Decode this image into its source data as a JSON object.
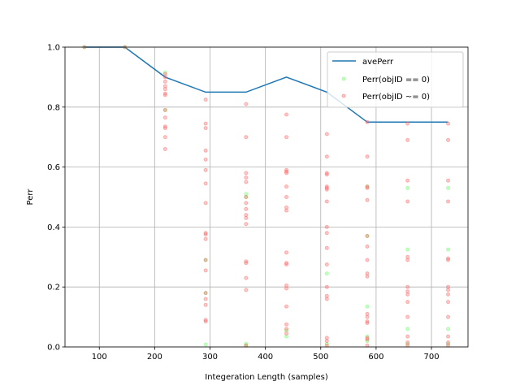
{
  "chart_data": {
    "type": "line",
    "title": "",
    "xlabel": "Integeration Length (samples)",
    "ylabel": "Perr",
    "xlim": [
      38,
      766
    ],
    "ylim": [
      0,
      1
    ],
    "xticks": [
      100,
      200,
      300,
      400,
      500,
      600,
      700
    ],
    "yticks": [
      0.0,
      0.2,
      0.4,
      0.6,
      0.8,
      1.0
    ],
    "grid": true,
    "legend_position": "top-right",
    "series": [
      {
        "name": "avePerr",
        "kind": "line",
        "color": "#1f77b4",
        "x": [
          73,
          146,
          219,
          292,
          365,
          438,
          511,
          584,
          657,
          730
        ],
        "y": [
          1.0,
          1.0,
          0.9,
          0.85,
          0.85,
          0.9,
          0.85,
          0.75,
          0.75,
          0.75
        ]
      },
      {
        "name": "Perr(objID == 0)",
        "kind": "scatter",
        "color": "#66ff66",
        "points": [
          [
            73,
            1.0
          ],
          [
            146,
            1.0
          ],
          [
            219,
            0.915
          ],
          [
            219,
            0.79
          ],
          [
            292,
            0.29
          ],
          [
            292,
            0.18
          ],
          [
            292,
            0.008
          ],
          [
            365,
            0.51
          ],
          [
            365,
            0.5
          ],
          [
            365,
            0.01
          ],
          [
            365,
            0.005
          ],
          [
            438,
            0.055
          ],
          [
            438,
            0.035
          ],
          [
            511,
            0.245
          ],
          [
            511,
            0.01
          ],
          [
            584,
            0.535
          ],
          [
            584,
            0.37
          ],
          [
            584,
            0.135
          ],
          [
            584,
            0.035
          ],
          [
            584,
            0.02
          ],
          [
            657,
            0.53
          ],
          [
            657,
            0.325
          ],
          [
            657,
            0.06
          ],
          [
            657,
            0.01
          ],
          [
            730,
            0.53
          ],
          [
            730,
            0.325
          ],
          [
            730,
            0.06
          ],
          [
            730,
            0.01
          ]
        ]
      },
      {
        "name": "Perr(objID ~= 0)",
        "kind": "scatter",
        "color": "#ff6666",
        "points": [
          [
            73,
            1.0
          ],
          [
            146,
            1.0
          ],
          [
            219,
            0.91
          ],
          [
            219,
            0.9
          ],
          [
            219,
            0.885
          ],
          [
            219,
            0.87
          ],
          [
            219,
            0.86
          ],
          [
            219,
            0.845
          ],
          [
            219,
            0.84
          ],
          [
            219,
            0.79
          ],
          [
            219,
            0.765
          ],
          [
            219,
            0.735
          ],
          [
            219,
            0.73
          ],
          [
            219,
            0.7
          ],
          [
            219,
            0.66
          ],
          [
            292,
            0.825
          ],
          [
            292,
            0.745
          ],
          [
            292,
            0.73
          ],
          [
            292,
            0.655
          ],
          [
            292,
            0.625
          ],
          [
            292,
            0.59
          ],
          [
            292,
            0.545
          ],
          [
            292,
            0.48
          ],
          [
            292,
            0.38
          ],
          [
            292,
            0.375
          ],
          [
            292,
            0.36
          ],
          [
            292,
            0.29
          ],
          [
            292,
            0.255
          ],
          [
            292,
            0.18
          ],
          [
            292,
            0.16
          ],
          [
            292,
            0.14
          ],
          [
            292,
            0.09
          ],
          [
            292,
            0.085
          ],
          [
            365,
            0.81
          ],
          [
            365,
            0.7
          ],
          [
            365,
            0.58
          ],
          [
            365,
            0.565
          ],
          [
            365,
            0.55
          ],
          [
            365,
            0.5
          ],
          [
            365,
            0.48
          ],
          [
            365,
            0.46
          ],
          [
            365,
            0.44
          ],
          [
            365,
            0.43
          ],
          [
            365,
            0.41
          ],
          [
            365,
            0.285
          ],
          [
            365,
            0.28
          ],
          [
            365,
            0.23
          ],
          [
            365,
            0.19
          ],
          [
            365,
            0.005
          ],
          [
            438,
            0.775
          ],
          [
            438,
            0.7
          ],
          [
            438,
            0.59
          ],
          [
            438,
            0.585
          ],
          [
            438,
            0.58
          ],
          [
            438,
            0.535
          ],
          [
            438,
            0.5
          ],
          [
            438,
            0.465
          ],
          [
            438,
            0.455
          ],
          [
            438,
            0.315
          ],
          [
            438,
            0.28
          ],
          [
            438,
            0.275
          ],
          [
            438,
            0.205
          ],
          [
            438,
            0.195
          ],
          [
            438,
            0.135
          ],
          [
            438,
            0.075
          ],
          [
            438,
            0.06
          ],
          [
            438,
            0.045
          ],
          [
            511,
            0.71
          ],
          [
            511,
            0.635
          ],
          [
            511,
            0.58
          ],
          [
            511,
            0.575
          ],
          [
            511,
            0.535
          ],
          [
            511,
            0.53
          ],
          [
            511,
            0.525
          ],
          [
            511,
            0.485
          ],
          [
            511,
            0.4
          ],
          [
            511,
            0.38
          ],
          [
            511,
            0.33
          ],
          [
            511,
            0.275
          ],
          [
            511,
            0.2
          ],
          [
            511,
            0.17
          ],
          [
            511,
            0.16
          ],
          [
            511,
            0.03
          ],
          [
            511,
            0.02
          ],
          [
            511,
            0.005
          ],
          [
            584,
            0.75
          ],
          [
            584,
            0.635
          ],
          [
            584,
            0.535
          ],
          [
            584,
            0.53
          ],
          [
            584,
            0.49
          ],
          [
            584,
            0.37
          ],
          [
            584,
            0.335
          ],
          [
            584,
            0.29
          ],
          [
            584,
            0.245
          ],
          [
            584,
            0.235
          ],
          [
            584,
            0.11
          ],
          [
            584,
            0.1
          ],
          [
            584,
            0.085
          ],
          [
            584,
            0.08
          ],
          [
            584,
            0.03
          ],
          [
            584,
            0.025
          ],
          [
            584,
            0.005
          ],
          [
            657,
            0.745
          ],
          [
            657,
            0.69
          ],
          [
            657,
            0.555
          ],
          [
            657,
            0.485
          ],
          [
            657,
            0.3
          ],
          [
            657,
            0.29
          ],
          [
            657,
            0.2
          ],
          [
            657,
            0.185
          ],
          [
            657,
            0.175
          ],
          [
            657,
            0.15
          ],
          [
            657,
            0.1
          ],
          [
            657,
            0.035
          ],
          [
            657,
            0.015
          ],
          [
            657,
            0.005
          ],
          [
            730,
            0.745
          ],
          [
            730,
            0.69
          ],
          [
            730,
            0.555
          ],
          [
            730,
            0.485
          ],
          [
            730,
            0.295
          ],
          [
            730,
            0.29
          ],
          [
            730,
            0.2
          ],
          [
            730,
            0.19
          ],
          [
            730,
            0.175
          ],
          [
            730,
            0.15
          ],
          [
            730,
            0.1
          ],
          [
            730,
            0.035
          ],
          [
            730,
            0.015
          ],
          [
            730,
            0.005
          ]
        ]
      }
    ]
  }
}
